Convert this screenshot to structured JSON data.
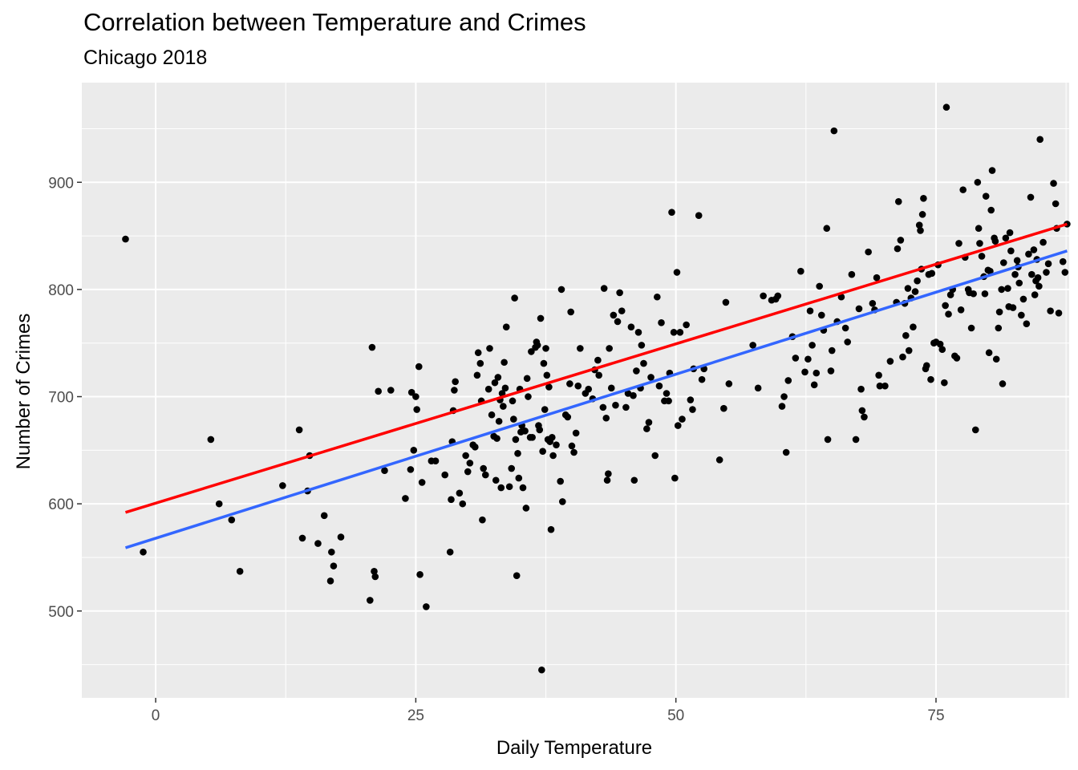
{
  "chart_data": {
    "type": "scatter",
    "title": "Correlation between Temperature and Crimes",
    "subtitle": "Chicago 2018",
    "xlabel": "Daily Temperature",
    "ylabel": "Number of Crimes",
    "xlim": [
      -7.1,
      87.8
    ],
    "ylim": [
      419,
      993
    ],
    "x_ticks": [
      0,
      25,
      50,
      75
    ],
    "y_ticks": [
      500,
      600,
      700,
      800,
      900
    ],
    "grid": true,
    "colors": {
      "panel": "#ebebeb",
      "grid": "#ffffff",
      "points": "#000000",
      "line_red": "#ff0000",
      "line_blue": "#3366ff"
    },
    "points": [
      [
        -2.9,
        847
      ],
      [
        -1.2,
        555
      ],
      [
        5.3,
        660
      ],
      [
        6.1,
        600
      ],
      [
        7.3,
        585
      ],
      [
        8.1,
        537
      ],
      [
        12.2,
        617
      ],
      [
        13.8,
        669
      ],
      [
        14.1,
        568
      ],
      [
        14.6,
        612
      ],
      [
        14.8,
        645
      ],
      [
        15.6,
        563
      ],
      [
        16.2,
        589
      ],
      [
        16.8,
        528
      ],
      [
        16.9,
        555
      ],
      [
        17.1,
        542
      ],
      [
        17.8,
        569
      ],
      [
        20.6,
        510
      ],
      [
        20.8,
        746
      ],
      [
        21.0,
        537
      ],
      [
        21.1,
        532
      ],
      [
        21.4,
        705
      ],
      [
        22.0,
        631
      ],
      [
        22.6,
        706
      ],
      [
        24.0,
        605
      ],
      [
        24.5,
        632
      ],
      [
        24.6,
        704
      ],
      [
        24.8,
        650
      ],
      [
        25.0,
        700
      ],
      [
        25.1,
        688
      ],
      [
        25.3,
        728
      ],
      [
        25.4,
        534
      ],
      [
        25.6,
        620
      ],
      [
        26.0,
        504
      ],
      [
        26.5,
        640
      ],
      [
        26.9,
        640
      ],
      [
        27.8,
        627
      ],
      [
        28.3,
        555
      ],
      [
        28.4,
        604
      ],
      [
        28.5,
        658
      ],
      [
        28.6,
        687
      ],
      [
        28.7,
        706
      ],
      [
        28.8,
        714
      ],
      [
        29.2,
        610
      ],
      [
        29.5,
        600
      ],
      [
        29.8,
        645
      ],
      [
        30.0,
        630
      ],
      [
        30.2,
        638
      ],
      [
        30.5,
        655
      ],
      [
        30.7,
        653
      ],
      [
        30.9,
        720
      ],
      [
        31.0,
        741
      ],
      [
        31.2,
        731
      ],
      [
        31.3,
        696
      ],
      [
        31.4,
        585
      ],
      [
        31.5,
        633
      ],
      [
        31.7,
        627
      ],
      [
        32.0,
        707
      ],
      [
        32.1,
        745
      ],
      [
        32.3,
        683
      ],
      [
        32.5,
        663
      ],
      [
        32.6,
        713
      ],
      [
        32.7,
        622
      ],
      [
        32.8,
        661
      ],
      [
        32.9,
        718
      ],
      [
        33.0,
        677
      ],
      [
        33.1,
        697
      ],
      [
        33.2,
        615
      ],
      [
        33.3,
        703
      ],
      [
        33.4,
        691
      ],
      [
        33.5,
        732
      ],
      [
        33.6,
        708
      ],
      [
        33.7,
        765
      ],
      [
        34.0,
        616
      ],
      [
        34.2,
        633
      ],
      [
        34.3,
        696
      ],
      [
        34.4,
        679
      ],
      [
        34.5,
        792
      ],
      [
        34.6,
        660
      ],
      [
        34.7,
        533
      ],
      [
        34.8,
        647
      ],
      [
        34.9,
        624
      ],
      [
        35.0,
        707
      ],
      [
        35.1,
        667
      ],
      [
        35.2,
        673
      ],
      [
        35.3,
        615
      ],
      [
        35.5,
        668
      ],
      [
        35.6,
        596
      ],
      [
        35.7,
        717
      ],
      [
        35.8,
        700
      ],
      [
        36.0,
        662
      ],
      [
        36.1,
        742
      ],
      [
        36.2,
        662
      ],
      [
        36.5,
        746
      ],
      [
        36.6,
        751
      ],
      [
        36.7,
        748
      ],
      [
        36.8,
        673
      ],
      [
        36.9,
        669
      ],
      [
        37.0,
        773
      ],
      [
        37.1,
        445
      ],
      [
        37.2,
        649
      ],
      [
        37.3,
        731
      ],
      [
        37.4,
        688
      ],
      [
        37.5,
        745
      ],
      [
        37.6,
        720
      ],
      [
        37.7,
        660
      ],
      [
        37.8,
        709
      ],
      [
        37.9,
        658
      ],
      [
        38.0,
        576
      ],
      [
        38.1,
        662
      ],
      [
        38.2,
        645
      ],
      [
        38.5,
        655
      ],
      [
        38.9,
        621
      ],
      [
        39.0,
        800
      ],
      [
        39.1,
        602
      ],
      [
        39.4,
        683
      ],
      [
        39.6,
        681
      ],
      [
        39.8,
        712
      ],
      [
        39.9,
        779
      ],
      [
        40.0,
        654
      ],
      [
        40.2,
        648
      ],
      [
        40.4,
        666
      ],
      [
        40.6,
        710
      ],
      [
        40.8,
        745
      ],
      [
        41.3,
        703
      ],
      [
        41.6,
        707
      ],
      [
        42.0,
        698
      ],
      [
        42.2,
        725
      ],
      [
        42.5,
        734
      ],
      [
        42.6,
        720
      ],
      [
        43.0,
        690
      ],
      [
        43.1,
        801
      ],
      [
        43.3,
        680
      ],
      [
        43.4,
        622
      ],
      [
        43.5,
        628
      ],
      [
        43.6,
        745
      ],
      [
        43.8,
        708
      ],
      [
        44.0,
        776
      ],
      [
        44.2,
        692
      ],
      [
        44.4,
        770
      ],
      [
        44.6,
        797
      ],
      [
        44.8,
        780
      ],
      [
        45.2,
        690
      ],
      [
        45.4,
        703
      ],
      [
        45.7,
        765
      ],
      [
        45.9,
        701
      ],
      [
        46.0,
        622
      ],
      [
        46.2,
        724
      ],
      [
        46.4,
        760
      ],
      [
        46.6,
        708
      ],
      [
        46.7,
        748
      ],
      [
        46.9,
        731
      ],
      [
        47.2,
        670
      ],
      [
        47.4,
        676
      ],
      [
        47.6,
        718
      ],
      [
        48.0,
        645
      ],
      [
        48.2,
        793
      ],
      [
        48.4,
        710
      ],
      [
        48.6,
        769
      ],
      [
        48.9,
        696
      ],
      [
        49.1,
        703
      ],
      [
        49.3,
        696
      ],
      [
        49.4,
        722
      ],
      [
        49.6,
        872
      ],
      [
        49.8,
        760
      ],
      [
        49.9,
        624
      ],
      [
        50.1,
        816
      ],
      [
        50.2,
        673
      ],
      [
        50.4,
        760
      ],
      [
        50.6,
        679
      ],
      [
        51.0,
        767
      ],
      [
        51.4,
        697
      ],
      [
        51.6,
        688
      ],
      [
        51.7,
        726
      ],
      [
        52.2,
        869
      ],
      [
        52.5,
        716
      ],
      [
        52.7,
        726
      ],
      [
        54.2,
        641
      ],
      [
        54.6,
        689
      ],
      [
        54.8,
        788
      ],
      [
        55.1,
        712
      ],
      [
        57.4,
        748
      ],
      [
        57.9,
        708
      ],
      [
        58.4,
        794
      ],
      [
        59.2,
        790
      ],
      [
        59.6,
        791
      ],
      [
        59.8,
        794
      ],
      [
        60.2,
        691
      ],
      [
        60.4,
        700
      ],
      [
        60.6,
        648
      ],
      [
        60.8,
        715
      ],
      [
        61.2,
        756
      ],
      [
        61.5,
        736
      ],
      [
        62.0,
        817
      ],
      [
        62.4,
        723
      ],
      [
        62.7,
        735
      ],
      [
        62.9,
        780
      ],
      [
        63.1,
        748
      ],
      [
        63.3,
        711
      ],
      [
        63.5,
        722
      ],
      [
        63.8,
        803
      ],
      [
        64.0,
        776
      ],
      [
        64.2,
        762
      ],
      [
        64.5,
        857
      ],
      [
        64.6,
        660
      ],
      [
        64.9,
        724
      ],
      [
        65.0,
        743
      ],
      [
        65.2,
        948
      ],
      [
        65.5,
        770
      ],
      [
        65.9,
        793
      ],
      [
        66.3,
        764
      ],
      [
        66.5,
        751
      ],
      [
        66.9,
        814
      ],
      [
        67.3,
        660
      ],
      [
        67.6,
        782
      ],
      [
        67.8,
        707
      ],
      [
        67.9,
        687
      ],
      [
        68.1,
        681
      ],
      [
        68.5,
        835
      ],
      [
        68.9,
        787
      ],
      [
        69.1,
        781
      ],
      [
        69.3,
        811
      ],
      [
        69.5,
        720
      ],
      [
        69.6,
        710
      ],
      [
        70.1,
        710
      ],
      [
        70.6,
        733
      ],
      [
        71.2,
        788
      ],
      [
        71.3,
        838
      ],
      [
        71.4,
        882
      ],
      [
        71.6,
        846
      ],
      [
        71.8,
        737
      ],
      [
        72.0,
        787
      ],
      [
        72.1,
        757
      ],
      [
        72.3,
        801
      ],
      [
        72.4,
        743
      ],
      [
        72.6,
        792
      ],
      [
        72.8,
        765
      ],
      [
        73.0,
        798
      ],
      [
        73.2,
        808
      ],
      [
        73.4,
        860
      ],
      [
        73.5,
        855
      ],
      [
        73.6,
        819
      ],
      [
        73.7,
        870
      ],
      [
        73.8,
        885
      ],
      [
        74.0,
        726
      ],
      [
        74.1,
        729
      ],
      [
        74.3,
        814
      ],
      [
        74.5,
        716
      ],
      [
        74.6,
        815
      ],
      [
        74.8,
        750
      ],
      [
        75.0,
        751
      ],
      [
        75.2,
        823
      ],
      [
        75.4,
        749
      ],
      [
        75.6,
        744
      ],
      [
        75.8,
        713
      ],
      [
        75.9,
        785
      ],
      [
        76.0,
        970
      ],
      [
        76.2,
        777
      ],
      [
        76.4,
        795
      ],
      [
        76.6,
        800
      ],
      [
        76.8,
        738
      ],
      [
        77.0,
        736
      ],
      [
        77.2,
        843
      ],
      [
        77.4,
        781
      ],
      [
        77.6,
        893
      ],
      [
        77.8,
        830
      ],
      [
        78.1,
        800
      ],
      [
        78.2,
        797
      ],
      [
        78.4,
        764
      ],
      [
        78.6,
        796
      ],
      [
        78.8,
        669
      ],
      [
        79.0,
        900
      ],
      [
        79.1,
        857
      ],
      [
        79.2,
        843
      ],
      [
        79.4,
        831
      ],
      [
        79.6,
        812
      ],
      [
        79.7,
        796
      ],
      [
        79.8,
        887
      ],
      [
        80.0,
        818
      ],
      [
        80.1,
        741
      ],
      [
        80.2,
        817
      ],
      [
        80.3,
        874
      ],
      [
        80.4,
        911
      ],
      [
        80.6,
        848
      ],
      [
        80.7,
        845
      ],
      [
        80.8,
        735
      ],
      [
        81.0,
        764
      ],
      [
        81.1,
        779
      ],
      [
        81.3,
        800
      ],
      [
        81.4,
        712
      ],
      [
        81.5,
        825
      ],
      [
        81.7,
        848
      ],
      [
        81.9,
        801
      ],
      [
        82.0,
        784
      ],
      [
        82.1,
        853
      ],
      [
        82.2,
        836
      ],
      [
        82.4,
        783
      ],
      [
        82.6,
        814
      ],
      [
        82.8,
        827
      ],
      [
        82.9,
        821
      ],
      [
        83.0,
        806
      ],
      [
        83.2,
        776
      ],
      [
        83.4,
        791
      ],
      [
        83.7,
        768
      ],
      [
        83.9,
        833
      ],
      [
        84.1,
        886
      ],
      [
        84.2,
        814
      ],
      [
        84.4,
        837
      ],
      [
        84.5,
        795
      ],
      [
        84.6,
        808
      ],
      [
        84.7,
        828
      ],
      [
        84.8,
        811
      ],
      [
        84.9,
        803
      ],
      [
        85.0,
        940
      ],
      [
        85.3,
        844
      ],
      [
        85.6,
        816
      ],
      [
        85.8,
        824
      ],
      [
        86.0,
        780
      ],
      [
        86.3,
        899
      ],
      [
        86.5,
        880
      ],
      [
        86.6,
        857
      ],
      [
        86.8,
        778
      ],
      [
        87.2,
        826
      ],
      [
        87.4,
        816
      ],
      [
        87.6,
        861
      ]
    ],
    "fit_lines": [
      {
        "color": "#ff0000",
        "x": [
          -2.9,
          87.6
        ],
        "y": [
          592,
          861
        ]
      },
      {
        "color": "#3366ff",
        "x": [
          -2.9,
          87.6
        ],
        "y": [
          559,
          836
        ]
      }
    ]
  }
}
